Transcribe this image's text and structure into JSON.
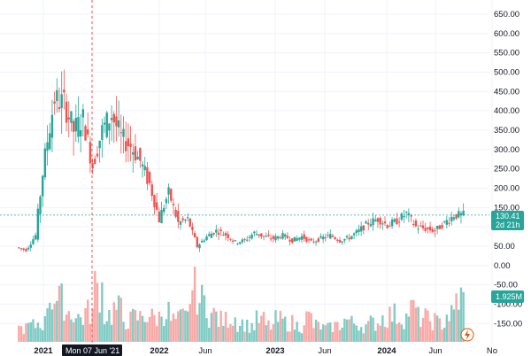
{
  "chart_data": {
    "type": "candlestick",
    "price_axis": {
      "ticks": [
        "650.00",
        "600.00",
        "550.00",
        "500.00",
        "450.00",
        "400.00",
        "350.00",
        "300.00",
        "250.00",
        "200.00",
        "150.00",
        "100.00",
        "50.00",
        "0.00",
        "-50.00",
        "-100.00",
        "-150.00"
      ],
      "tick_values": [
        650,
        600,
        550,
        500,
        450,
        400,
        350,
        300,
        250,
        200,
        150,
        100,
        50,
        0,
        -50,
        -100,
        -150
      ]
    },
    "x_axis": {
      "labels": [
        "2021",
        "2022",
        "Jun",
        "2023",
        "Jun",
        "2024",
        "Jun",
        "No"
      ],
      "crosshair_label": "Mon 07 Jun '21"
    },
    "last_price": {
      "value": "130.41",
      "countdown": "2d 21h",
      "price": 130.41
    },
    "volume_tag": {
      "value": "1.925M"
    },
    "colors": {
      "up": "#26a69a",
      "down": "#ef5350",
      "up_vol": "#80cbc4",
      "down_vol": "#f7a9a7"
    },
    "price_series": [
      {
        "date": "2020-10",
        "close": 47
      },
      {
        "date": "2020-11",
        "close": 40
      },
      {
        "date": "2020-12",
        "close": 78
      },
      {
        "date": "2021-01",
        "close": 290
      },
      {
        "date": "2021-02",
        "close": 430
      },
      {
        "date": "2021-03",
        "close": 420
      },
      {
        "date": "2021-04",
        "close": 350
      },
      {
        "date": "2021-05",
        "close": 380
      },
      {
        "date": "2021-06",
        "close": 260
      },
      {
        "date": "2021-07",
        "close": 350
      },
      {
        "date": "2021-08",
        "close": 390
      },
      {
        "date": "2021-09",
        "close": 330
      },
      {
        "date": "2021-10",
        "close": 310
      },
      {
        "date": "2021-11",
        "close": 270
      },
      {
        "date": "2021-12",
        "close": 210
      },
      {
        "date": "2022-01",
        "close": 120
      },
      {
        "date": "2022-02",
        "close": 190
      },
      {
        "date": "2022-03",
        "close": 110
      },
      {
        "date": "2022-04",
        "close": 120
      },
      {
        "date": "2022-05",
        "close": 50
      },
      {
        "date": "2022-06",
        "close": 75
      },
      {
        "date": "2022-07",
        "close": 90
      },
      {
        "date": "2022-08",
        "close": 80
      },
      {
        "date": "2022-09",
        "close": 60
      },
      {
        "date": "2022-10",
        "close": 65
      },
      {
        "date": "2022-11",
        "close": 85
      },
      {
        "date": "2022-12",
        "close": 75
      },
      {
        "date": "2023-01",
        "close": 70
      },
      {
        "date": "2023-02",
        "close": 78
      },
      {
        "date": "2023-03",
        "close": 65
      },
      {
        "date": "2023-04",
        "close": 75
      },
      {
        "date": "2023-05",
        "close": 60
      },
      {
        "date": "2023-06",
        "close": 70
      },
      {
        "date": "2023-07",
        "close": 78
      },
      {
        "date": "2023-08",
        "close": 65
      },
      {
        "date": "2023-09",
        "close": 72
      },
      {
        "date": "2023-10",
        "close": 90
      },
      {
        "date": "2023-11",
        "close": 110
      },
      {
        "date": "2023-12",
        "close": 120
      },
      {
        "date": "2024-01",
        "close": 105
      },
      {
        "date": "2024-02",
        "close": 115
      },
      {
        "date": "2024-03",
        "close": 135
      },
      {
        "date": "2024-04",
        "close": 100
      },
      {
        "date": "2024-05",
        "close": 95
      },
      {
        "date": "2024-06",
        "close": 90
      },
      {
        "date": "2024-07",
        "close": 110
      },
      {
        "date": "2024-08",
        "close": 130
      },
      {
        "date": "2024-09",
        "close": 130.41
      }
    ],
    "volume_series": [
      {
        "date": "2020-10",
        "level": 0.25
      },
      {
        "date": "2020-11",
        "level": 0.3
      },
      {
        "date": "2020-12",
        "level": 0.35
      },
      {
        "date": "2021-01",
        "level": 0.85
      },
      {
        "date": "2021-02",
        "level": 0.75
      },
      {
        "date": "2021-03",
        "level": 0.55
      },
      {
        "date": "2021-04",
        "level": 0.45
      },
      {
        "date": "2021-05",
        "level": 0.55
      },
      {
        "date": "2021-06",
        "level": 1.0
      },
      {
        "date": "2021-07",
        "level": 0.5
      },
      {
        "date": "2021-08",
        "level": 0.6
      },
      {
        "date": "2021-09",
        "level": 0.4
      },
      {
        "date": "2021-10",
        "level": 0.45
      },
      {
        "date": "2021-11",
        "level": 0.5
      },
      {
        "date": "2021-12",
        "level": 0.45
      },
      {
        "date": "2022-01",
        "level": 0.55
      },
      {
        "date": "2022-02",
        "level": 0.4
      },
      {
        "date": "2022-03",
        "level": 0.45
      },
      {
        "date": "2022-04",
        "level": 0.95
      },
      {
        "date": "2022-05",
        "level": 0.75
      },
      {
        "date": "2022-06",
        "level": 0.5
      },
      {
        "date": "2022-07",
        "level": 0.4
      },
      {
        "date": "2022-08",
        "level": 0.45
      },
      {
        "date": "2022-09",
        "level": 0.35
      },
      {
        "date": "2022-10",
        "level": 0.3
      },
      {
        "date": "2022-11",
        "level": 0.4
      },
      {
        "date": "2022-12",
        "level": 0.3
      },
      {
        "date": "2023-01",
        "level": 0.4
      },
      {
        "date": "2023-02",
        "level": 0.35
      },
      {
        "date": "2023-03",
        "level": 0.3
      },
      {
        "date": "2023-04",
        "level": 0.45
      },
      {
        "date": "2023-05",
        "level": 0.3
      },
      {
        "date": "2023-06",
        "level": 0.25
      },
      {
        "date": "2023-07",
        "level": 0.3
      },
      {
        "date": "2023-08",
        "level": 0.4
      },
      {
        "date": "2023-09",
        "level": 0.35
      },
      {
        "date": "2023-10",
        "level": 0.3
      },
      {
        "date": "2023-11",
        "level": 0.35
      },
      {
        "date": "2023-12",
        "level": 0.45
      },
      {
        "date": "2024-01",
        "level": 0.5
      },
      {
        "date": "2024-02",
        "level": 0.45
      },
      {
        "date": "2024-03",
        "level": 0.6
      },
      {
        "date": "2024-04",
        "level": 0.45
      },
      {
        "date": "2024-05",
        "level": 0.4
      },
      {
        "date": "2024-06",
        "level": 0.35
      },
      {
        "date": "2024-07",
        "level": 0.5
      },
      {
        "date": "2024-08",
        "level": 0.8
      },
      {
        "date": "2024-09",
        "level": 0.7
      }
    ]
  }
}
